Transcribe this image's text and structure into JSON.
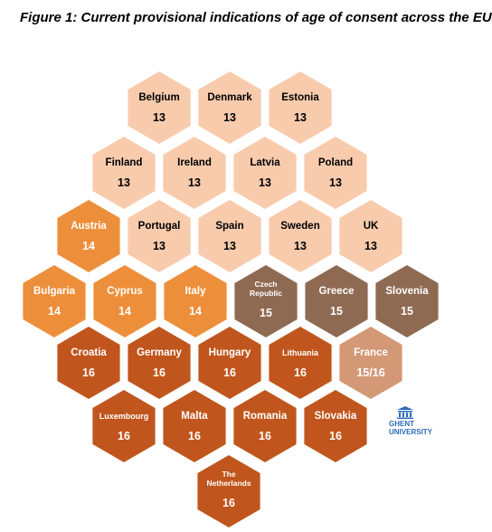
{
  "title": "Figure 1: Current provisional indications of age of consent across the EU",
  "colors": {
    "13": "#f8cbad",
    "14": "#ed8f3a",
    "15": "#8f6a52",
    "15/16": "#d39876",
    "16": "#c0561d",
    "text_light": "#000000",
    "text_dark": "#ffffff",
    "logo": "#2b6cb8"
  },
  "countries": [
    {
      "name": "Belgium",
      "age": "13",
      "row": 0,
      "col": 0
    },
    {
      "name": "Denmark",
      "age": "13",
      "row": 0,
      "col": 1
    },
    {
      "name": "Estonia",
      "age": "13",
      "row": 0,
      "col": 2
    },
    {
      "name": "Finland",
      "age": "13",
      "row": 1,
      "col": 0
    },
    {
      "name": "Ireland",
      "age": "13",
      "row": 1,
      "col": 1
    },
    {
      "name": "Latvia",
      "age": "13",
      "row": 1,
      "col": 2
    },
    {
      "name": "Poland",
      "age": "13",
      "row": 1,
      "col": 3
    },
    {
      "name": "Austria",
      "age": "14",
      "row": 2,
      "col": 0
    },
    {
      "name": "Portugal",
      "age": "13",
      "row": 2,
      "col": 1
    },
    {
      "name": "Spain",
      "age": "13",
      "row": 2,
      "col": 2
    },
    {
      "name": "Sweden",
      "age": "13",
      "row": 2,
      "col": 3
    },
    {
      "name": "UK",
      "age": "13",
      "row": 2,
      "col": 4
    },
    {
      "name": "Bulgaria",
      "age": "14",
      "row": 3,
      "col": 0
    },
    {
      "name": "Cyprus",
      "age": "14",
      "row": 3,
      "col": 1
    },
    {
      "name": "Italy",
      "age": "14",
      "row": 3,
      "col": 2
    },
    {
      "name": "Czech Republic",
      "age": "15",
      "row": 3,
      "col": 3
    },
    {
      "name": "Greece",
      "age": "15",
      "row": 3,
      "col": 4
    },
    {
      "name": "Slovenia",
      "age": "15",
      "row": 3,
      "col": 5
    },
    {
      "name": "Croatia",
      "age": "16",
      "row": 4,
      "col": 0
    },
    {
      "name": "Germany",
      "age": "16",
      "row": 4,
      "col": 1
    },
    {
      "name": "Hungary",
      "age": "16",
      "row": 4,
      "col": 2
    },
    {
      "name": "Lithuania",
      "age": "16",
      "row": 4,
      "col": 3
    },
    {
      "name": "France",
      "age": "15/16",
      "row": 4,
      "col": 4
    },
    {
      "name": "Luxembourg",
      "age": "16",
      "row": 5,
      "col": 0
    },
    {
      "name": "Malta",
      "age": "16",
      "row": 5,
      "col": 1
    },
    {
      "name": "Romania",
      "age": "16",
      "row": 5,
      "col": 2
    },
    {
      "name": "Slovakia",
      "age": "16",
      "row": 5,
      "col": 3
    },
    {
      "name": "The Netherlands",
      "age": "16",
      "row": 6,
      "col": 0
    }
  ],
  "logo": {
    "line1": "GHENT",
    "line2": "UNIVERSITY",
    "icon": "university-building-icon"
  }
}
